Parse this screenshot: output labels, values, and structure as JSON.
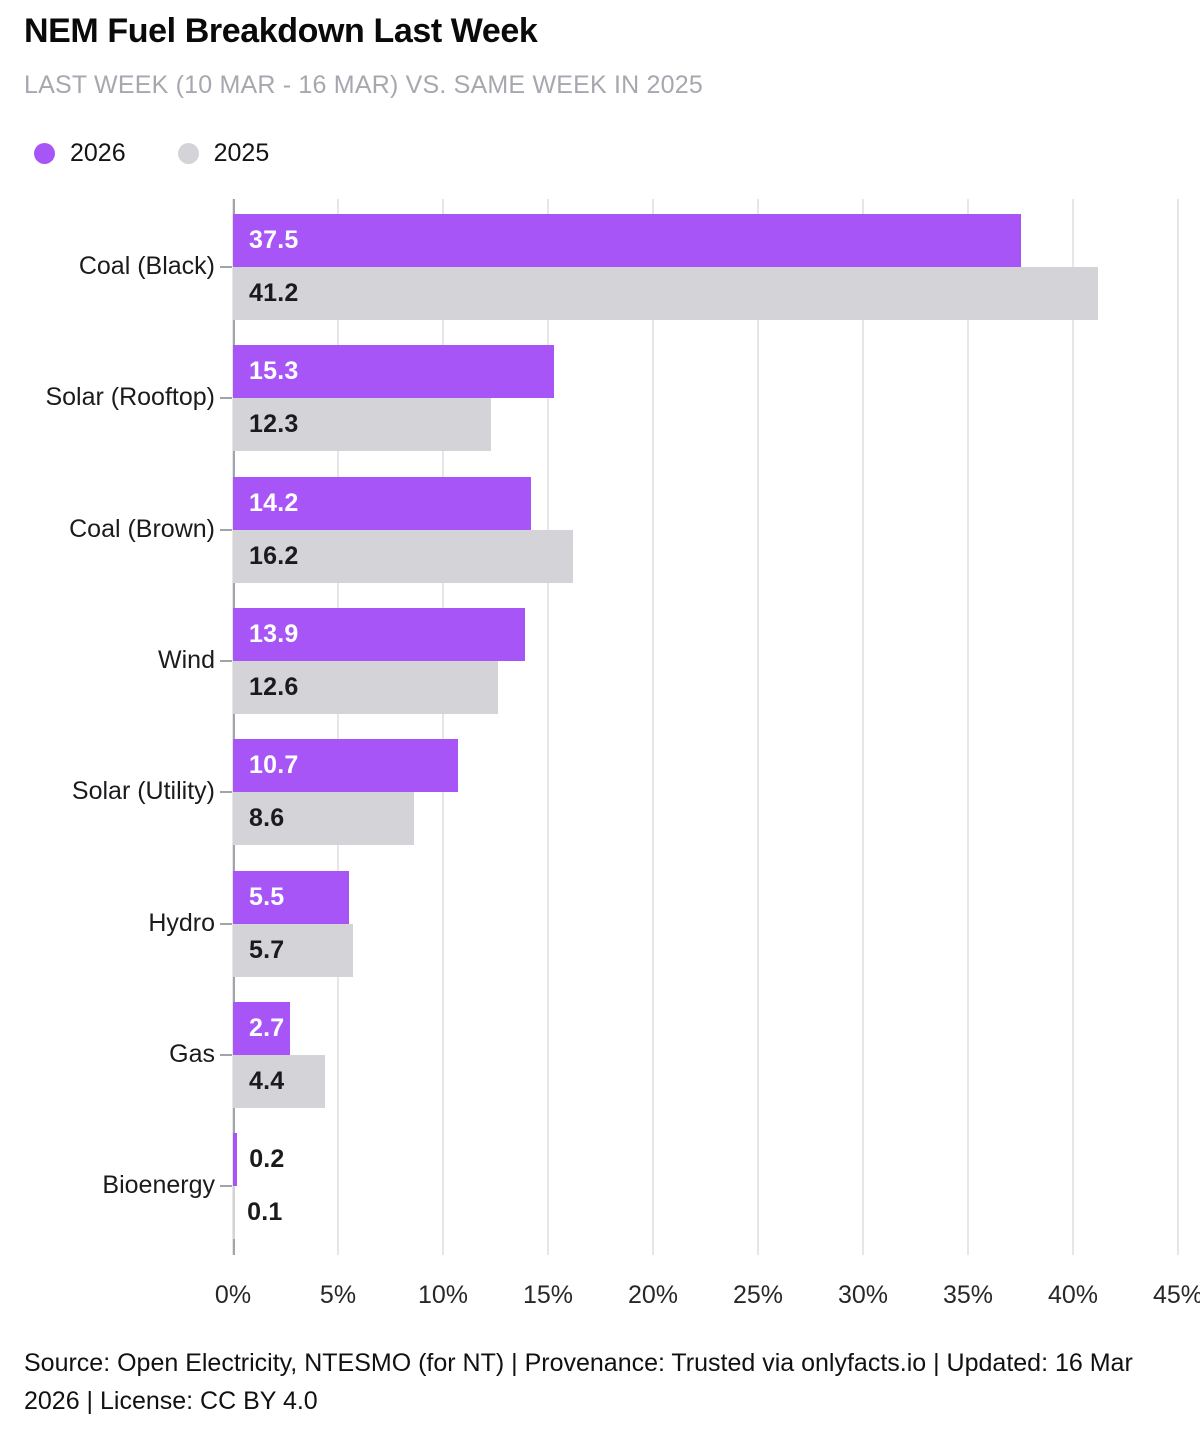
{
  "header": {
    "title": "NEM Fuel Breakdown Last Week",
    "subtitle": "LAST WEEK (10 MAR - 16 MAR) VS. SAME WEEK IN 2025"
  },
  "legend": [
    {
      "label": "2026",
      "color": "#a855f7"
    },
    {
      "label": "2025",
      "color": "#d4d4d8"
    }
  ],
  "chart_data": {
    "type": "bar",
    "orientation": "horizontal",
    "title": "NEM Fuel Breakdown Last Week",
    "categories": [
      "Coal (Black)",
      "Solar (Rooftop)",
      "Coal (Brown)",
      "Wind",
      "Solar (Utility)",
      "Hydro",
      "Gas",
      "Bioenergy"
    ],
    "series": [
      {
        "name": "2026",
        "color": "#a855f7",
        "values": [
          37.5,
          15.3,
          14.2,
          13.9,
          10.7,
          5.5,
          2.7,
          0.2
        ]
      },
      {
        "name": "2025",
        "color": "#d4d4d8",
        "values": [
          41.2,
          12.3,
          16.2,
          12.6,
          8.6,
          5.7,
          4.4,
          0.1
        ]
      }
    ],
    "xlabel": "",
    "ylabel": "",
    "xlim": [
      0,
      45
    ],
    "x_tick_values": [
      0,
      5,
      10,
      15,
      20,
      25,
      30,
      35,
      40,
      45
    ],
    "x_tick_labels": [
      "0%",
      "5%",
      "10%",
      "15%",
      "20%",
      "25%",
      "30%",
      "35%",
      "40%",
      "45%"
    ],
    "grid": true,
    "legend_position": "top-left",
    "value_labels": true
  },
  "colors": {
    "bar_2026": "#a855f7",
    "bar_2025": "#d4d4d8",
    "value_on_purple": "#ffffff",
    "value_on_gray": "#1b1b1e",
    "gridline": "#e6e6e9",
    "axis": "#a0a4ab",
    "subtitle": "#a7a7af"
  },
  "footer": {
    "text": "Source: Open Electricity, NTESMO (for NT) | Provenance: Trusted via onlyfacts.io | Updated: 16 Mar 2026 | License: CC BY 4.0"
  }
}
